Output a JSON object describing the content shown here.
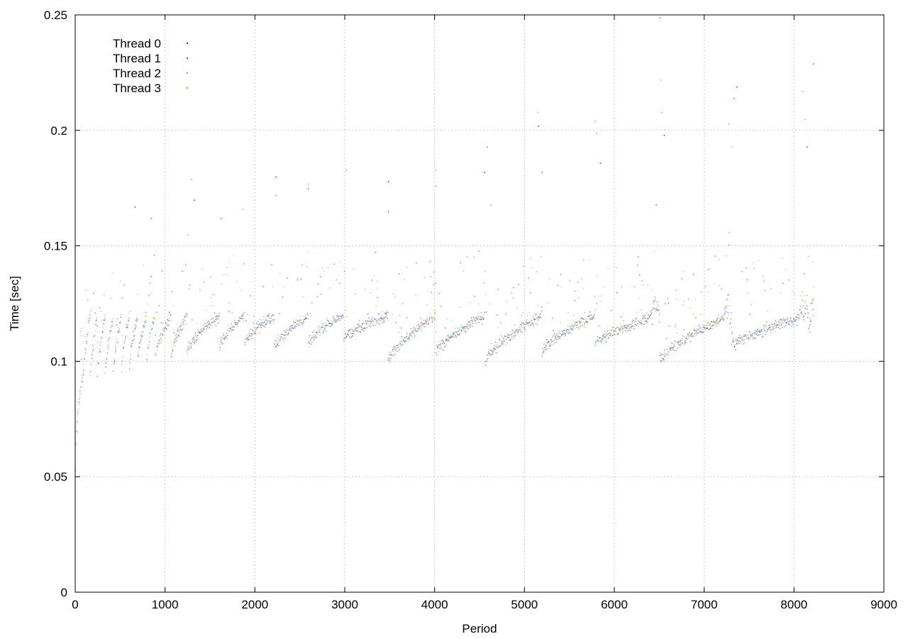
{
  "chart_data": {
    "type": "scatter",
    "title": "",
    "xlabel": "Period",
    "ylabel": "Time [sec]",
    "xlim": [
      0,
      9000
    ],
    "ylim": [
      0,
      0.25
    ],
    "x_ticks": [
      "0",
      "1000",
      "2000",
      "3000",
      "4000",
      "5000",
      "6000",
      "7000",
      "8000",
      "9000"
    ],
    "y_ticks": [
      "0",
      "0.05",
      "0.1",
      "0.15",
      "0.2",
      "0.25"
    ],
    "grid": true,
    "legend_position": "top-left",
    "point_count_per_series": 8220,
    "series": [
      {
        "name": "Thread 0",
        "color": "#9400d3"
      },
      {
        "name": "Thread 1",
        "color": "#009e73"
      },
      {
        "name": "Thread 2",
        "color": "#56b4e9"
      },
      {
        "name": "Thread 3",
        "color": "#e69f00"
      }
    ],
    "trend_description": "Time rises from ~0.055 at period 0 to ~0.10 by period 100, then follows a sawtooth pattern between ~0.10 and ~0.12 with resets roughly every 330-500 periods; scattered outliers up to ~0.25.",
    "sawtooth_resets": [
      80,
      160,
      240,
      330,
      420,
      510,
      600,
      690,
      790,
      880,
      1060,
      1240,
      1600,
      1880,
      2210,
      2590,
      2980,
      3480,
      4010,
      4560,
      5190,
      5780,
      6500,
      7280,
      8160
    ],
    "segment_start_values": [
      0.09,
      0.09,
      0.092,
      0.094,
      0.096,
      0.097,
      0.098,
      0.1,
      0.1,
      0.1,
      0.102,
      0.104,
      0.106,
      0.108,
      0.106,
      0.108,
      0.11,
      0.1,
      0.104,
      0.1,
      0.104,
      0.108,
      0.1,
      0.106,
      0.104
    ],
    "segment_end_value": 0.12,
    "outlier_values": [
      [
        660,
        0.167
      ],
      [
        840,
        0.162
      ],
      [
        1250,
        0.155
      ],
      [
        1290,
        0.179
      ],
      [
        1320,
        0.17
      ],
      [
        1620,
        0.162
      ],
      [
        1860,
        0.166
      ],
      [
        2230,
        0.172
      ],
      [
        2230,
        0.18
      ],
      [
        2590,
        0.175
      ],
      [
        2590,
        0.177
      ],
      [
        3010,
        0.183
      ],
      [
        3480,
        0.178
      ],
      [
        3480,
        0.165
      ],
      [
        4010,
        0.176
      ],
      [
        4010,
        0.183
      ],
      [
        4550,
        0.182
      ],
      [
        4580,
        0.193
      ],
      [
        4620,
        0.168
      ],
      [
        5140,
        0.208
      ],
      [
        5150,
        0.202
      ],
      [
        5190,
        0.182
      ],
      [
        5780,
        0.204
      ],
      [
        5800,
        0.199
      ],
      [
        5840,
        0.186
      ],
      [
        6500,
        0.249
      ],
      [
        6510,
        0.222
      ],
      [
        6520,
        0.208
      ],
      [
        6550,
        0.198
      ],
      [
        6460,
        0.168
      ],
      [
        7270,
        0.203
      ],
      [
        7300,
        0.193
      ],
      [
        7360,
        0.219
      ],
      [
        7330,
        0.214
      ],
      [
        8090,
        0.217
      ],
      [
        8120,
        0.205
      ],
      [
        8140,
        0.193
      ],
      [
        8210,
        0.229
      ]
    ],
    "bumps": [
      [
        6450,
        0.13
      ],
      [
        7270,
        0.134
      ],
      [
        8100,
        0.132
      ],
      [
        8200,
        0.136
      ]
    ]
  }
}
